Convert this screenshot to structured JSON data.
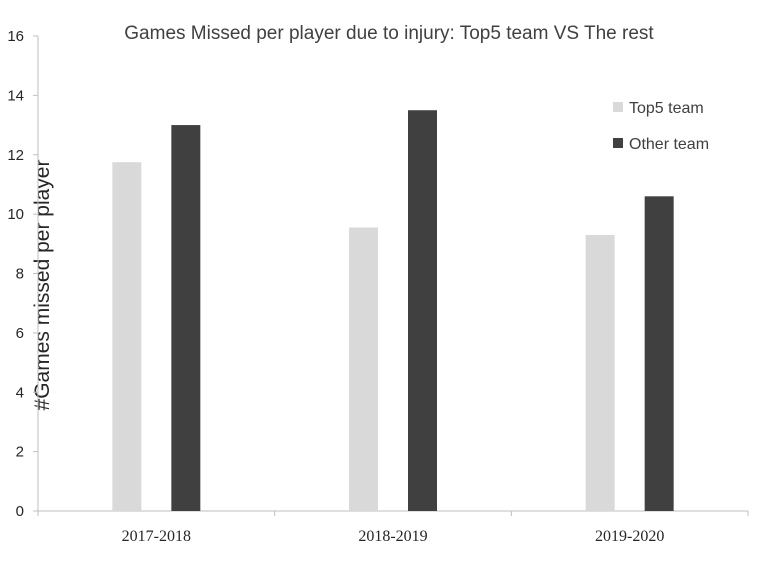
{
  "chart_data": {
    "type": "bar",
    "title": "Games Missed per player due to injury: Top5 team VS The rest",
    "xlabel": "",
    "ylabel": "#Games missed per player",
    "categories": [
      "2017-2018",
      "2018-2019",
      "2019-2020"
    ],
    "series": [
      {
        "name": "Top5 team",
        "values": [
          11.75,
          9.55,
          9.3
        ],
        "color": "#d9d9d9"
      },
      {
        "name": "Other team",
        "values": [
          13.0,
          13.5,
          10.6
        ],
        "color": "#404040"
      }
    ],
    "ylim": [
      0,
      16
    ],
    "yticks": [
      0,
      2,
      4,
      6,
      8,
      10,
      12,
      14,
      16
    ],
    "grid": false,
    "legend_position": "top-right"
  }
}
